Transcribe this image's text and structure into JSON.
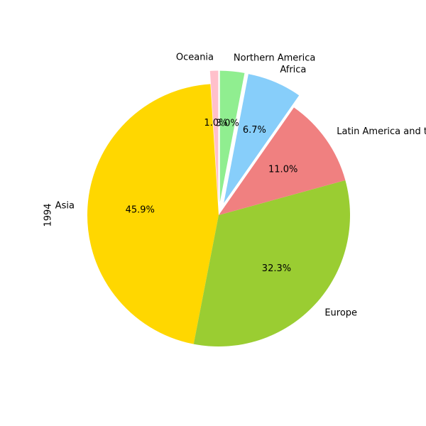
{
  "chart_data": {
    "type": "pie",
    "ylabel": "1994",
    "start_angle_deg": 90,
    "direction": "counterclockwise",
    "slices": [
      {
        "label": "Oceania",
        "value": 1.0,
        "pct_label": "1.0%",
        "color": "#ffc0cb",
        "exploded": true
      },
      {
        "label": "Asia",
        "value": 45.9,
        "pct_label": "45.9%",
        "color": "#ffd700",
        "exploded": false
      },
      {
        "label": "Europe",
        "value": 32.3,
        "pct_label": "32.3%",
        "color": "#9acd32",
        "exploded": false
      },
      {
        "label": "Latin America and the Caribbean",
        "value": 11.0,
        "pct_label": "11.0%",
        "color": "#f08080",
        "exploded": false
      },
      {
        "label": "Africa",
        "value": 6.7,
        "pct_label": "6.7%",
        "color": "#87cefa",
        "exploded": true
      },
      {
        "label": "Northern America",
        "value": 3.0,
        "pct_label": "3.0%",
        "color": "#90ee90",
        "exploded": true
      }
    ]
  }
}
